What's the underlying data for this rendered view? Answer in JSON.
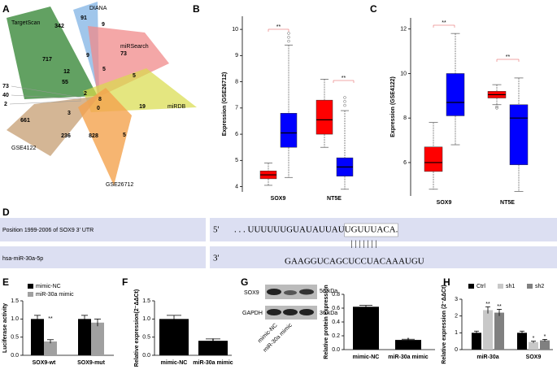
{
  "panel_labels": [
    "A",
    "B",
    "C",
    "D",
    "E",
    "F",
    "G",
    "H"
  ],
  "venn": {
    "sets": [
      "TargetScan",
      "DIANA",
      "miRSearch",
      "miRDB",
      "GSE4122",
      "GSE26712"
    ],
    "counts": [
      342,
      91,
      9,
      717,
      9,
      73,
      12,
      55,
      2,
      5,
      5,
      73,
      40,
      2,
      8,
      19,
      3,
      0,
      661,
      236,
      828,
      5
    ]
  },
  "alignment": {
    "utr_label": "Position 1999-2006 of SOX9 3' UTR",
    "utr_end": "5'",
    "utr_seq_before": ". . . UUUUUUGUAUAUUAU",
    "utr_seq_site": "UGUUUACA.",
    "pairing": "| | | | | | |",
    "mirna_label": "hsa-miR-30a-5p",
    "mirna_end": "3'",
    "mirna_seq": "GAAGGUCAGCUCCUACAAAUGU"
  },
  "blot": {
    "bands": [
      "SOX9",
      "GAPDH"
    ],
    "sizes": [
      "56 kDa",
      "36 kDa"
    ],
    "lanes": [
      "mimic-NC",
      "miR-30a mimic"
    ]
  },
  "chart_data": [
    {
      "type": "box",
      "ylabel": "Expression (GSE26712)",
      "categories": [
        "SOX9",
        "NT5E"
      ],
      "ylim": [
        3.8,
        10.5
      ],
      "yticks": [
        4,
        5,
        6,
        7,
        8,
        9,
        10
      ],
      "annotations": [
        "**",
        "**"
      ],
      "series": [
        {
          "color": "#ff0000",
          "values": [
            {
              "min": 4.05,
              "q1": 4.3,
              "median": 4.45,
              "q3": 4.6,
              "max": 4.9,
              "outliers": []
            },
            {
              "min": 5.5,
              "q1": 6.0,
              "median": 6.55,
              "q3": 7.3,
              "max": 8.1,
              "outliers": []
            }
          ]
        },
        {
          "color": "#0000ff",
          "values": [
            {
              "min": 4.35,
              "q1": 5.5,
              "median": 6.05,
              "q3": 6.8,
              "max": 9.4,
              "outliers": [
                9.55,
                9.7,
                9.85
              ]
            },
            {
              "min": 3.9,
              "q1": 4.4,
              "median": 4.75,
              "q3": 5.1,
              "max": 6.9,
              "outliers": [
                7.1,
                7.25,
                7.4
              ]
            }
          ]
        }
      ]
    },
    {
      "type": "box",
      "ylabel": "Expression (GSE4122)",
      "categories": [
        "SOX9",
        "NT5E"
      ],
      "ylim": [
        4.5,
        12.5
      ],
      "yticks": [
        6,
        8,
        10,
        12
      ],
      "annotations": [
        "**",
        "**"
      ],
      "series": [
        {
          "color": "#ff0000",
          "values": [
            {
              "min": 4.8,
              "q1": 5.6,
              "median": 6.0,
              "q3": 6.7,
              "max": 7.8,
              "outliers": []
            },
            {
              "min": 8.6,
              "q1": 8.9,
              "median": 9.05,
              "q3": 9.2,
              "max": 9.5,
              "outliers": [
                8.5,
                8.45
              ]
            }
          ]
        },
        {
          "color": "#0000ff",
          "values": [
            {
              "min": 6.8,
              "q1": 8.1,
              "median": 8.7,
              "q3": 10.0,
              "max": 11.8,
              "outliers": []
            },
            {
              "min": 4.7,
              "q1": 5.9,
              "median": 8.0,
              "q3": 8.6,
              "max": 9.8,
              "outliers": []
            }
          ]
        }
      ]
    },
    {
      "type": "bar",
      "ylabel": "Luciferase activity",
      "categories": [
        "SOX9-wt",
        "SOX9-mut"
      ],
      "ylim": [
        0,
        1.5
      ],
      "yticks": [
        {
          "value": 0,
          "label": "0.0"
        },
        0.5,
        {
          "value": 1,
          "label": "1.0"
        },
        1.5
      ],
      "annotations": [
        "**"
      ],
      "series": [
        {
          "name": "mimic-NC",
          "color": "#000000",
          "values": [
            1.0,
            1.0
          ],
          "errors": [
            0.1,
            0.1
          ]
        },
        {
          "name": "miR-30a mimic",
          "color": "#a0a0a0",
          "values": [
            0.38,
            0.9
          ],
          "errors": [
            0.05,
            0.1
          ]
        }
      ]
    },
    {
      "type": "bar",
      "ylabel": "Relative expression(2⁻ΔΔCt)",
      "categories": [
        "mimic-NC",
        "miR-30a mimic"
      ],
      "ylim": [
        0,
        1.5
      ],
      "yticks": [
        {
          "value": 0,
          "label": "0.0"
        },
        0.5,
        {
          "value": 1,
          "label": "1.0"
        },
        1.5
      ],
      "annotations": [
        "*"
      ],
      "series": [
        {
          "color": "#000000",
          "values": [
            1.0,
            0.4
          ],
          "errors": [
            0.1,
            0.05
          ]
        }
      ]
    },
    {
      "type": "bar",
      "ylabel": "Relative protein expression",
      "categories": [
        "mimic-NC",
        "miR-30a mimic"
      ],
      "ylim": [
        0,
        0.8
      ],
      "yticks": [
        {
          "value": 0,
          "label": "0.0"
        },
        0.2,
        0.4,
        0.6,
        0.8
      ],
      "annotations": [
        "*"
      ],
      "series": [
        {
          "color": "#000000",
          "values": [
            0.62,
            0.14
          ],
          "errors": [
            0.02,
            0.01
          ]
        }
      ]
    },
    {
      "type": "bar",
      "ylabel": "Relative expression (2⁻ΔΔCt)",
      "categories": [
        "miR-30a",
        "SOX9"
      ],
      "ylim": [
        0,
        3
      ],
      "yticks": [
        0,
        1,
        2,
        3
      ],
      "annotations": [
        "**",
        "**",
        "*",
        "*"
      ],
      "series": [
        {
          "name": "Ctrl",
          "color": "#000000",
          "values": [
            1.0,
            1.0
          ],
          "errors": [
            0.1,
            0.1
          ]
        },
        {
          "name": "sh1",
          "color": "#c8c8c8",
          "values": [
            2.35,
            0.45
          ],
          "errors": [
            0.2,
            0.05
          ]
        },
        {
          "name": "sh2",
          "color": "#808080",
          "values": [
            2.2,
            0.55
          ],
          "errors": [
            0.2,
            0.06
          ]
        }
      ]
    }
  ]
}
